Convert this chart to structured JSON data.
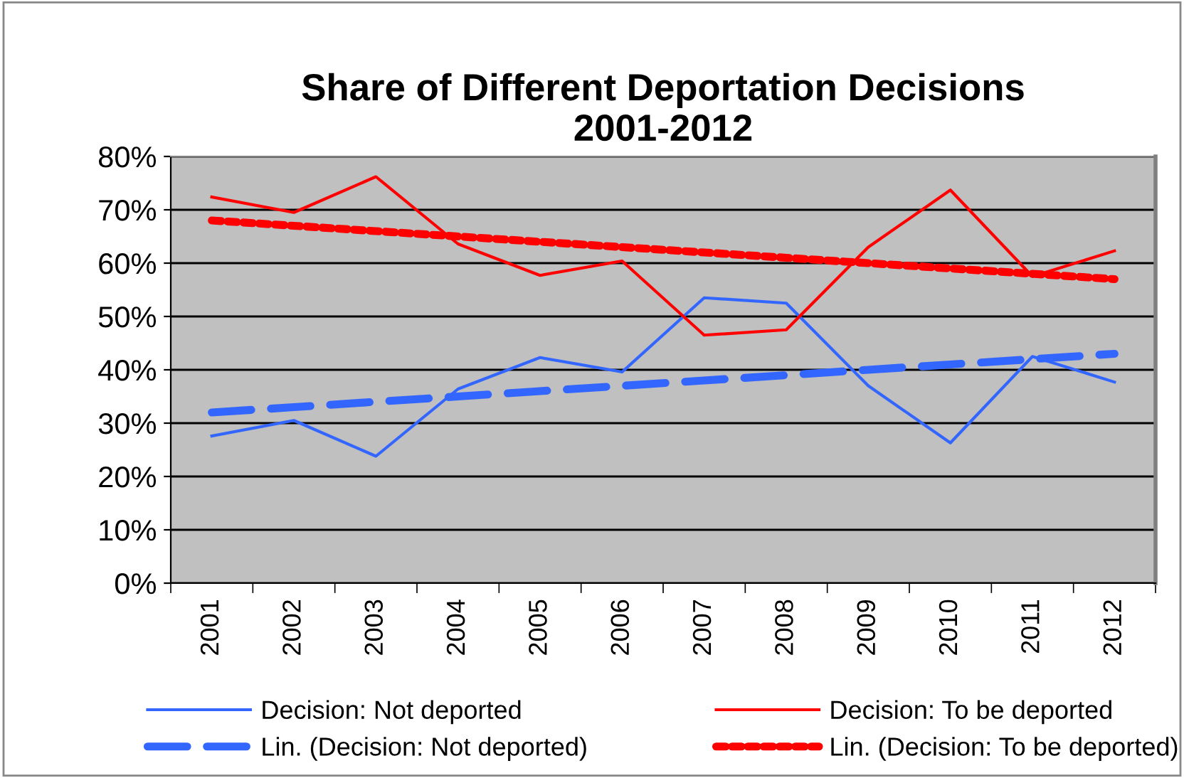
{
  "chart_data": {
    "type": "line",
    "title": "Share of Different Deportation Decisions\n2001-2012",
    "categories": [
      "2001",
      "2002",
      "2003",
      "2004",
      "2005",
      "2006",
      "2007",
      "2008",
      "2009",
      "2010",
      "2011",
      "2012"
    ],
    "series": [
      {
        "name": "Decision: Not deported",
        "color": "#3366ff",
        "line_style": "solid",
        "values": [
          27.6,
          30.5,
          23.8,
          36.4,
          42.3,
          39.6,
          53.5,
          52.5,
          37.0,
          26.3,
          42.5,
          37.7
        ]
      },
      {
        "name": "Decision: To be deported",
        "color": "#ff0000",
        "line_style": "solid",
        "values": [
          72.4,
          69.5,
          76.2,
          63.6,
          57.7,
          60.4,
          46.5,
          47.5,
          63.0,
          73.7,
          57.5,
          62.3
        ]
      },
      {
        "name": "Lin. (Decision: Not deported)",
        "color": "#3366ff",
        "line_style": "dashed",
        "values": [
          32,
          33,
          34,
          35,
          36,
          37,
          38,
          39,
          40,
          41,
          42,
          43
        ]
      },
      {
        "name": "Lin. (Decision: To be deported)",
        "color": "#ff0000",
        "line_style": "dotted",
        "values": [
          68,
          67,
          66,
          65,
          64,
          63,
          62,
          61,
          60,
          59,
          58,
          57
        ]
      }
    ],
    "ylim": [
      0,
      80
    ],
    "yticks": [
      {
        "value": 0,
        "label": "0%"
      },
      {
        "value": 10,
        "label": "10%"
      },
      {
        "value": 20,
        "label": "20%"
      },
      {
        "value": 30,
        "label": "30%"
      },
      {
        "value": 40,
        "label": "40%"
      },
      {
        "value": 50,
        "label": "50%"
      },
      {
        "value": 60,
        "label": "60%"
      },
      {
        "value": 70,
        "label": "70%"
      },
      {
        "value": 80,
        "label": "80%"
      }
    ],
    "grid": "y",
    "legend": "bottom",
    "marker": "none"
  }
}
